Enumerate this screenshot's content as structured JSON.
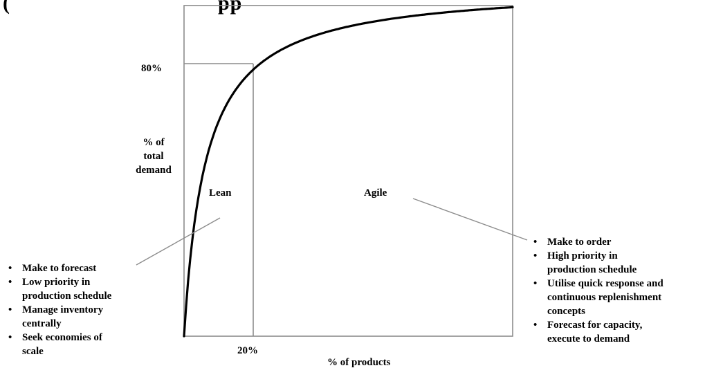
{
  "title_fragment": {
    "left": "(",
    "right": "pp"
  },
  "chart_data": {
    "type": "line",
    "x_axis_label": "% of products",
    "y_axis_label_lines": [
      "% of",
      "total",
      "demand"
    ],
    "x_marker": "20%",
    "y_marker": "80%",
    "curve": {
      "shape": "pareto",
      "marker_x_fraction": 0.2,
      "marker_y_fraction": 0.8
    },
    "regions": [
      {
        "name": "Lean"
      },
      {
        "name": "Agile"
      }
    ]
  },
  "lean_bullets": [
    "Make to forecast",
    "Low priority in",
    "production schedule",
    "Manage inventory",
    "centrally",
    "Seek economies of",
    "scale"
  ],
  "agile_bullets": [
    "Make to order",
    "High priority in",
    "production schedule",
    "Utilise quick response and",
    "continuous replenishment",
    "concepts",
    "Forecast for capacity,",
    "execute to demand"
  ],
  "colors": {
    "line": "#000000",
    "frame": "#8c8c8c",
    "text": "#000000"
  }
}
